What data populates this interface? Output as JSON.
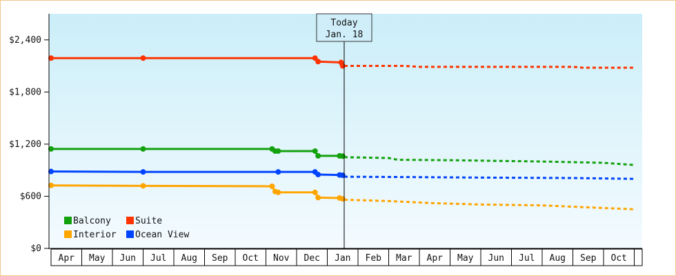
{
  "chart_data": {
    "type": "line",
    "title": "",
    "xlabel": "",
    "ylabel": "",
    "ylim": [
      0,
      2700
    ],
    "yticks": [
      {
        "value": 0,
        "label": "$0"
      },
      {
        "value": 600,
        "label": "$600"
      },
      {
        "value": 1200,
        "label": "$1,200"
      },
      {
        "value": 1800,
        "label": "$1,800"
      },
      {
        "value": 2400,
        "label": "$2,400"
      }
    ],
    "x_domain": [
      "Apr",
      "Oct (end)"
    ],
    "month_ticks": [
      "Apr",
      "May",
      "Jun",
      "Jul",
      "Aug",
      "Sep",
      "Oct",
      "Nov",
      "Dec",
      "Jan",
      "Feb",
      "Mar",
      "Apr",
      "May",
      "Jun",
      "Jul",
      "Aug",
      "Sep",
      "Oct"
    ],
    "grid": false,
    "legend_placement": "bottom-left",
    "today_marker": {
      "line1": "Today",
      "line2": "Jan. 18",
      "month_position": 9.55
    },
    "series": [
      {
        "name": "Suite",
        "color": "#ff3300",
        "historical": [
          [
            0,
            2190
          ],
          [
            3,
            2190
          ],
          [
            8.6,
            2190
          ],
          [
            8.7,
            2150
          ],
          [
            9.45,
            2140
          ],
          [
            9.5,
            2100
          ],
          [
            9.55,
            2100
          ]
        ],
        "markers": [
          0,
          3,
          8.6,
          8.7,
          9.45,
          9.5
        ],
        "forecast": [
          [
            9.55,
            2100
          ],
          [
            11.5,
            2100
          ],
          [
            12,
            2090
          ],
          [
            15,
            2090
          ],
          [
            17,
            2090
          ],
          [
            17.3,
            2080
          ],
          [
            19,
            2080
          ]
        ]
      },
      {
        "name": "Balcony",
        "color": "#13a10e",
        "historical": [
          [
            0,
            1145
          ],
          [
            3,
            1145
          ],
          [
            7.2,
            1145
          ],
          [
            7.3,
            1120
          ],
          [
            7.4,
            1120
          ],
          [
            8.6,
            1120
          ],
          [
            8.7,
            1065
          ],
          [
            9.4,
            1065
          ],
          [
            9.55,
            1060
          ]
        ],
        "markers": [
          0,
          3,
          7.2,
          7.3,
          7.4,
          8.6,
          8.7,
          9.4,
          9.5
        ],
        "forecast": [
          [
            9.55,
            1050
          ],
          [
            11,
            1040
          ],
          [
            11.3,
            1020
          ],
          [
            13,
            1015
          ],
          [
            16,
            1000
          ],
          [
            18,
            985
          ],
          [
            19,
            960
          ]
        ]
      },
      {
        "name": "Ocean View",
        "color": "#0044ff",
        "historical": [
          [
            0,
            885
          ],
          [
            3,
            880
          ],
          [
            7.4,
            880
          ],
          [
            8.6,
            880
          ],
          [
            8.7,
            850
          ],
          [
            9.4,
            845
          ],
          [
            9.55,
            840
          ]
        ],
        "markers": [
          0,
          3,
          7.4,
          8.6,
          8.7,
          9.4,
          9.5
        ],
        "forecast": [
          [
            9.55,
            825
          ],
          [
            12,
            820
          ],
          [
            14,
            815
          ],
          [
            17,
            810
          ],
          [
            19,
            800
          ]
        ]
      },
      {
        "name": "Interior",
        "color": "#ffa500",
        "historical": [
          [
            0,
            725
          ],
          [
            3,
            720
          ],
          [
            7.2,
            715
          ],
          [
            7.3,
            655
          ],
          [
            7.4,
            645
          ],
          [
            8.6,
            645
          ],
          [
            8.7,
            585
          ],
          [
            9.4,
            580
          ],
          [
            9.55,
            565
          ]
        ],
        "markers": [
          0,
          3,
          7.2,
          7.3,
          7.4,
          8.6,
          8.7,
          9.4,
          9.5
        ],
        "forecast": [
          [
            9.55,
            560
          ],
          [
            11,
            545
          ],
          [
            12.5,
            520
          ],
          [
            14,
            505
          ],
          [
            16,
            495
          ],
          [
            17,
            480
          ],
          [
            19,
            450
          ]
        ]
      }
    ],
    "legend_rows": [
      [
        "Balcony",
        "Suite"
      ],
      [
        "Interior",
        "Ocean View"
      ]
    ]
  },
  "colors": {
    "plot_top": "#cbeef9",
    "plot_bottom": "#f4fbfe",
    "frame_border": "#f2c48a"
  }
}
